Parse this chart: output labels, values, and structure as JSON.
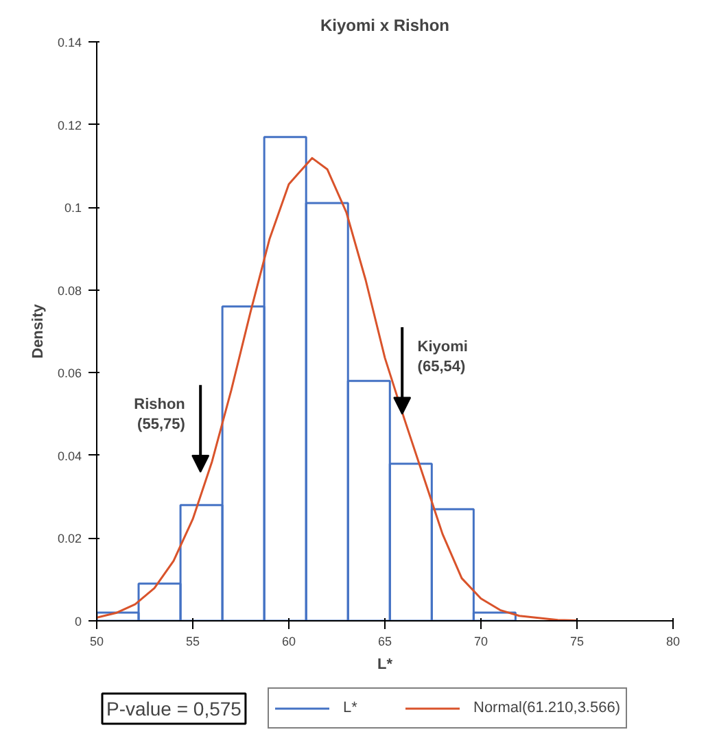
{
  "chart_data": {
    "type": "histogram",
    "title": "Kiyomi x Rishon",
    "xlabel": "L*",
    "ylabel": "Density",
    "xlim": [
      50,
      80
    ],
    "xticks": [
      50,
      55,
      60,
      65,
      70,
      75,
      80
    ],
    "ylim": [
      0,
      0.14
    ],
    "yticks": [
      0,
      0.02,
      0.04,
      0.06,
      0.08,
      0.1,
      0.12,
      0.14
    ],
    "grid": false,
    "legend": "bottom",
    "series": [
      {
        "name": "L*",
        "color": "#4472c4",
        "bins": [
          50,
          52.18,
          54.36,
          56.54,
          58.72,
          60.9,
          63.08,
          65.26,
          67.44,
          69.62,
          71.8
        ],
        "values": [
          0.002,
          0.009,
          0.028,
          0.076,
          0.117,
          0.101,
          0.058,
          0.038,
          0.027,
          0.002
        ]
      },
      {
        "name": "Normal(61.210,3.566)",
        "type": "line",
        "color": "#d9532b",
        "x": [
          50,
          51,
          52,
          53,
          54,
          55,
          56,
          57,
          58,
          59,
          60,
          61.21,
          62,
          63,
          64,
          65,
          66,
          67,
          68,
          69,
          70,
          71,
          72,
          74,
          75
        ],
        "values": [
          0.0008,
          0.0019,
          0.004,
          0.0079,
          0.0145,
          0.0246,
          0.0385,
          0.0557,
          0.0746,
          0.0924,
          0.1056,
          0.1119,
          0.1092,
          0.0987,
          0.0824,
          0.0636,
          0.049,
          0.035,
          0.021,
          0.0103,
          0.0054,
          0.0026,
          0.0012,
          0.0002,
          0.0001
        ]
      }
    ],
    "annotations": [
      {
        "text": "Rishon\n(55,75)",
        "x": 55.4,
        "y": 0.036
      },
      {
        "text": "Kiyomi\n(65,54)",
        "x": 65.9,
        "y": 0.05
      },
      "P-value = 0,575"
    ]
  }
}
